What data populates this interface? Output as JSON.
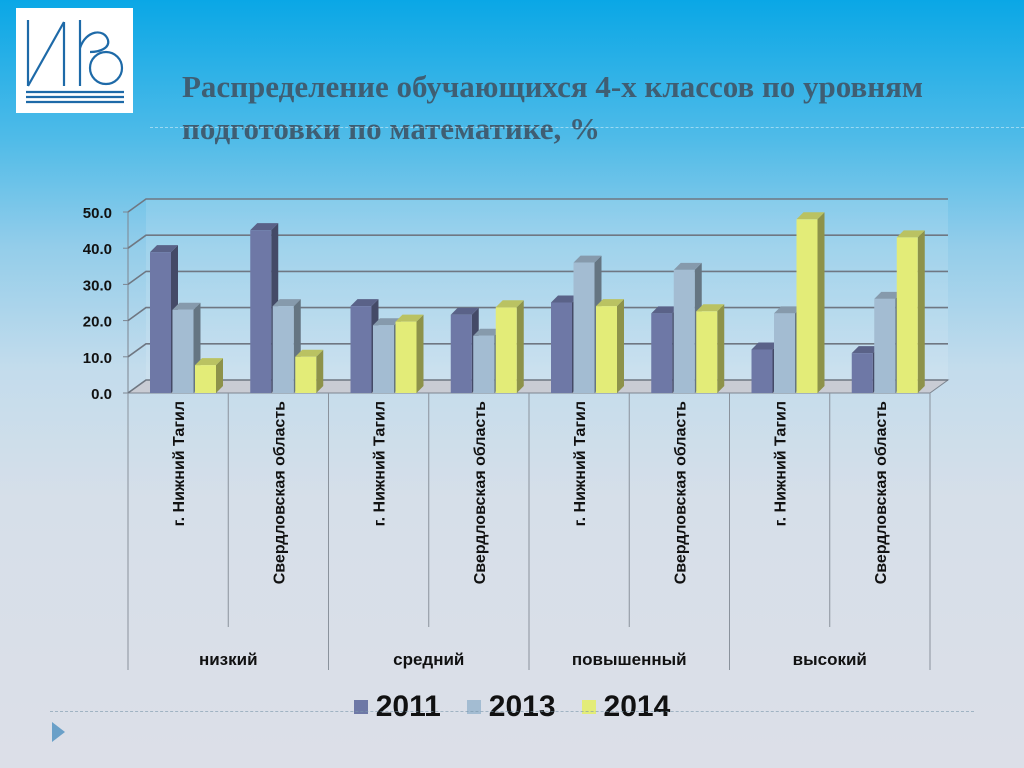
{
  "slide": {
    "title": "Распределение обучающихся 4-х классов по уровням подготовки по математике, %"
  },
  "colors": {
    "2011": "#6e78a6",
    "2013": "#a3bcd2",
    "2014": "#e3ec78"
  },
  "chart_data": {
    "type": "bar",
    "groups": [
      "низкий",
      "средний",
      "повышенный",
      "высокий"
    ],
    "categories": [
      "г. Нижний Тагил",
      "Свердловская область",
      "г. Нижний Тагил",
      "Свердловская область",
      "г. Нижний Тагил",
      "Свердловская область",
      "г. Нижний Тагил",
      "Свердловская область"
    ],
    "series": [
      {
        "name": "2011",
        "values": [
          38.9,
          45.0,
          24.0,
          21.6,
          25.0,
          22.0,
          12.0,
          11.0
        ]
      },
      {
        "name": "2013",
        "values": [
          23.0,
          24.0,
          18.7,
          15.8,
          36.0,
          34.0,
          22.0,
          26.0
        ]
      },
      {
        "name": "2014",
        "values": [
          7.7,
          10.0,
          19.7,
          23.7,
          24.0,
          22.6,
          48.0,
          43.0
        ]
      }
    ],
    "yticks": [
      "0.0",
      "10.0",
      "20.0",
      "30.0",
      "40.0",
      "50.0"
    ],
    "ylim": [
      0,
      50
    ],
    "grid": true,
    "legend_position": "bottom"
  }
}
